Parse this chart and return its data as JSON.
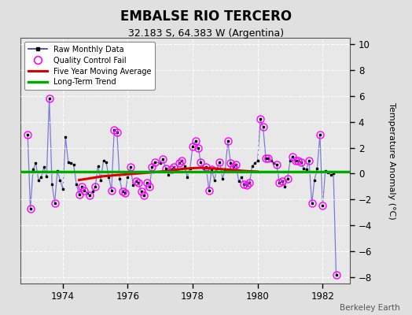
{
  "title": "EMBALSE RIO TERCERO",
  "subtitle": "32.183 S, 64.383 W (Argentina)",
  "ylabel": "Temperature Anomaly (°C)",
  "credit": "Berkeley Earth",
  "ylim": [
    -8.5,
    10.5
  ],
  "yticks": [
    -8,
    -6,
    -4,
    -2,
    0,
    2,
    4,
    6,
    8,
    10
  ],
  "xlim_start": 1972.7,
  "xlim_end": 1982.85,
  "xticks": [
    1974,
    1976,
    1978,
    1980,
    1982
  ],
  "figure_bg": "#e0e0e0",
  "plot_bg": "#e8e8e8",
  "grid_color": "#ffffff",
  "raw_color": "#3333cc",
  "raw_line_alpha": 0.6,
  "dot_color": "#000000",
  "qc_color": "#ff00ff",
  "ma_color": "#dd0000",
  "trend_color": "#00aa00",
  "trend_value": 0.12,
  "raw_data": [
    [
      1972.917,
      3.0
    ],
    [
      1973.0,
      -2.7
    ],
    [
      1973.083,
      0.3
    ],
    [
      1973.167,
      0.8
    ],
    [
      1973.25,
      -0.5
    ],
    [
      1973.333,
      -0.3
    ],
    [
      1973.417,
      0.5
    ],
    [
      1973.5,
      -0.2
    ],
    [
      1973.583,
      5.8
    ],
    [
      1973.667,
      -0.8
    ],
    [
      1973.75,
      -2.3
    ],
    [
      1973.833,
      0.2
    ],
    [
      1973.917,
      -0.5
    ],
    [
      1974.0,
      -1.2
    ],
    [
      1974.083,
      2.8
    ],
    [
      1974.167,
      0.9
    ],
    [
      1974.25,
      0.8
    ],
    [
      1974.333,
      0.7
    ],
    [
      1974.417,
      -0.8
    ],
    [
      1974.5,
      -1.6
    ],
    [
      1974.583,
      -1.0
    ],
    [
      1974.667,
      -1.3
    ],
    [
      1974.75,
      -1.5
    ],
    [
      1974.833,
      -1.7
    ],
    [
      1974.917,
      -1.4
    ],
    [
      1975.0,
      -1.0
    ],
    [
      1975.083,
      0.6
    ],
    [
      1975.167,
      -0.5
    ],
    [
      1975.25,
      1.0
    ],
    [
      1975.333,
      0.9
    ],
    [
      1975.417,
      -0.3
    ],
    [
      1975.5,
      -1.3
    ],
    [
      1975.583,
      3.4
    ],
    [
      1975.667,
      3.2
    ],
    [
      1975.75,
      -0.4
    ],
    [
      1975.833,
      -1.4
    ],
    [
      1975.917,
      -1.5
    ],
    [
      1976.0,
      -0.3
    ],
    [
      1976.083,
      0.5
    ],
    [
      1976.167,
      -0.9
    ],
    [
      1976.25,
      -0.6
    ],
    [
      1976.333,
      -0.7
    ],
    [
      1976.417,
      -1.4
    ],
    [
      1976.5,
      -1.7
    ],
    [
      1976.583,
      -0.7
    ],
    [
      1976.667,
      -1.0
    ],
    [
      1976.75,
      0.5
    ],
    [
      1976.833,
      0.9
    ],
    [
      1977.0,
      0.8
    ],
    [
      1977.083,
      1.1
    ],
    [
      1977.167,
      0.4
    ],
    [
      1977.25,
      -0.1
    ],
    [
      1977.333,
      0.3
    ],
    [
      1977.417,
      0.5
    ],
    [
      1977.5,
      0.2
    ],
    [
      1977.583,
      0.8
    ],
    [
      1977.667,
      1.0
    ],
    [
      1977.75,
      0.6
    ],
    [
      1977.833,
      -0.3
    ],
    [
      1977.917,
      0.4
    ],
    [
      1978.0,
      2.1
    ],
    [
      1978.083,
      2.5
    ],
    [
      1978.167,
      2.0
    ],
    [
      1978.25,
      0.9
    ],
    [
      1978.333,
      0.4
    ],
    [
      1978.417,
      0.5
    ],
    [
      1978.5,
      -1.3
    ],
    [
      1978.583,
      0.3
    ],
    [
      1978.667,
      -0.5
    ],
    [
      1978.75,
      0.4
    ],
    [
      1978.833,
      0.9
    ],
    [
      1978.917,
      -0.4
    ],
    [
      1979.0,
      0.3
    ],
    [
      1979.083,
      2.5
    ],
    [
      1979.167,
      0.8
    ],
    [
      1979.25,
      0.5
    ],
    [
      1979.333,
      0.7
    ],
    [
      1979.417,
      -0.6
    ],
    [
      1979.5,
      -0.3
    ],
    [
      1979.583,
      -0.8
    ],
    [
      1979.667,
      -0.9
    ],
    [
      1979.75,
      -0.7
    ],
    [
      1979.833,
      0.6
    ],
    [
      1979.917,
      0.8
    ],
    [
      1980.0,
      1.0
    ],
    [
      1980.083,
      4.2
    ],
    [
      1980.167,
      3.6
    ],
    [
      1980.25,
      1.2
    ],
    [
      1980.333,
      1.2
    ],
    [
      1980.417,
      1.0
    ],
    [
      1980.5,
      0.8
    ],
    [
      1980.583,
      0.7
    ],
    [
      1980.667,
      -0.7
    ],
    [
      1980.75,
      -0.6
    ],
    [
      1980.833,
      -1.0
    ],
    [
      1980.917,
      -0.4
    ],
    [
      1981.0,
      1.0
    ],
    [
      1981.083,
      1.3
    ],
    [
      1981.167,
      1.0
    ],
    [
      1981.25,
      1.0
    ],
    [
      1981.333,
      0.9
    ],
    [
      1981.417,
      0.4
    ],
    [
      1981.5,
      0.3
    ],
    [
      1981.583,
      1.0
    ],
    [
      1981.667,
      -2.3
    ],
    [
      1981.75,
      -0.5
    ],
    [
      1981.833,
      0.4
    ],
    [
      1981.917,
      3.0
    ],
    [
      1982.0,
      -2.5
    ],
    [
      1982.083,
      0.2
    ],
    [
      1982.167,
      0.1
    ],
    [
      1982.25,
      -0.1
    ],
    [
      1982.333,
      0.0
    ],
    [
      1982.417,
      -7.8
    ]
  ],
  "qc_fail_data": [
    [
      1972.917,
      3.0
    ],
    [
      1973.583,
      5.8
    ],
    [
      1973.0,
      -2.7
    ],
    [
      1973.75,
      -2.3
    ],
    [
      1974.833,
      -1.7
    ],
    [
      1974.5,
      -1.6
    ],
    [
      1974.667,
      -1.3
    ],
    [
      1974.583,
      -1.0
    ],
    [
      1975.0,
      -1.0
    ],
    [
      1975.5,
      -1.3
    ],
    [
      1975.583,
      3.4
    ],
    [
      1975.667,
      3.2
    ],
    [
      1975.833,
      -1.4
    ],
    [
      1975.917,
      -1.5
    ],
    [
      1976.083,
      0.5
    ],
    [
      1976.25,
      -0.6
    ],
    [
      1976.333,
      -0.7
    ],
    [
      1976.417,
      -1.4
    ],
    [
      1976.5,
      -1.7
    ],
    [
      1976.583,
      -0.7
    ],
    [
      1976.667,
      -1.0
    ],
    [
      1976.75,
      0.5
    ],
    [
      1976.833,
      0.9
    ],
    [
      1977.083,
      1.1
    ],
    [
      1977.167,
      0.4
    ],
    [
      1977.333,
      0.3
    ],
    [
      1977.417,
      0.5
    ],
    [
      1977.583,
      0.8
    ],
    [
      1977.667,
      1.0
    ],
    [
      1978.0,
      2.1
    ],
    [
      1978.083,
      2.5
    ],
    [
      1978.167,
      2.0
    ],
    [
      1978.25,
      0.9
    ],
    [
      1978.417,
      0.5
    ],
    [
      1978.5,
      -1.3
    ],
    [
      1978.583,
      0.3
    ],
    [
      1978.833,
      0.9
    ],
    [
      1979.083,
      2.5
    ],
    [
      1979.167,
      0.8
    ],
    [
      1979.25,
      0.5
    ],
    [
      1979.333,
      0.7
    ],
    [
      1979.583,
      -0.8
    ],
    [
      1979.667,
      -0.9
    ],
    [
      1979.75,
      -0.7
    ],
    [
      1980.083,
      4.2
    ],
    [
      1980.167,
      3.6
    ],
    [
      1980.25,
      1.2
    ],
    [
      1980.333,
      1.2
    ],
    [
      1980.583,
      0.7
    ],
    [
      1980.667,
      -0.7
    ],
    [
      1980.75,
      -0.6
    ],
    [
      1980.917,
      -0.4
    ],
    [
      1981.083,
      1.3
    ],
    [
      1981.167,
      1.0
    ],
    [
      1981.25,
      1.0
    ],
    [
      1981.333,
      0.9
    ],
    [
      1981.583,
      1.0
    ],
    [
      1981.667,
      -2.3
    ],
    [
      1981.917,
      3.0
    ],
    [
      1982.0,
      -2.5
    ],
    [
      1982.417,
      -7.8
    ]
  ],
  "moving_avg": [
    [
      1974.5,
      -0.5
    ],
    [
      1974.75,
      -0.4
    ],
    [
      1975.0,
      -0.3
    ],
    [
      1975.25,
      -0.2
    ],
    [
      1975.5,
      -0.15
    ],
    [
      1975.75,
      -0.1
    ],
    [
      1976.0,
      -0.05
    ],
    [
      1976.25,
      0.0
    ],
    [
      1976.5,
      0.05
    ],
    [
      1976.75,
      0.1
    ],
    [
      1977.0,
      0.15
    ],
    [
      1977.25,
      0.2
    ],
    [
      1977.5,
      0.3
    ],
    [
      1977.75,
      0.38
    ],
    [
      1978.0,
      0.42
    ],
    [
      1978.25,
      0.45
    ],
    [
      1978.5,
      0.42
    ],
    [
      1978.75,
      0.38
    ],
    [
      1979.0,
      0.32
    ],
    [
      1979.25,
      0.28
    ],
    [
      1979.5,
      0.22
    ],
    [
      1979.75,
      0.18
    ],
    [
      1980.0,
      0.15
    ]
  ]
}
